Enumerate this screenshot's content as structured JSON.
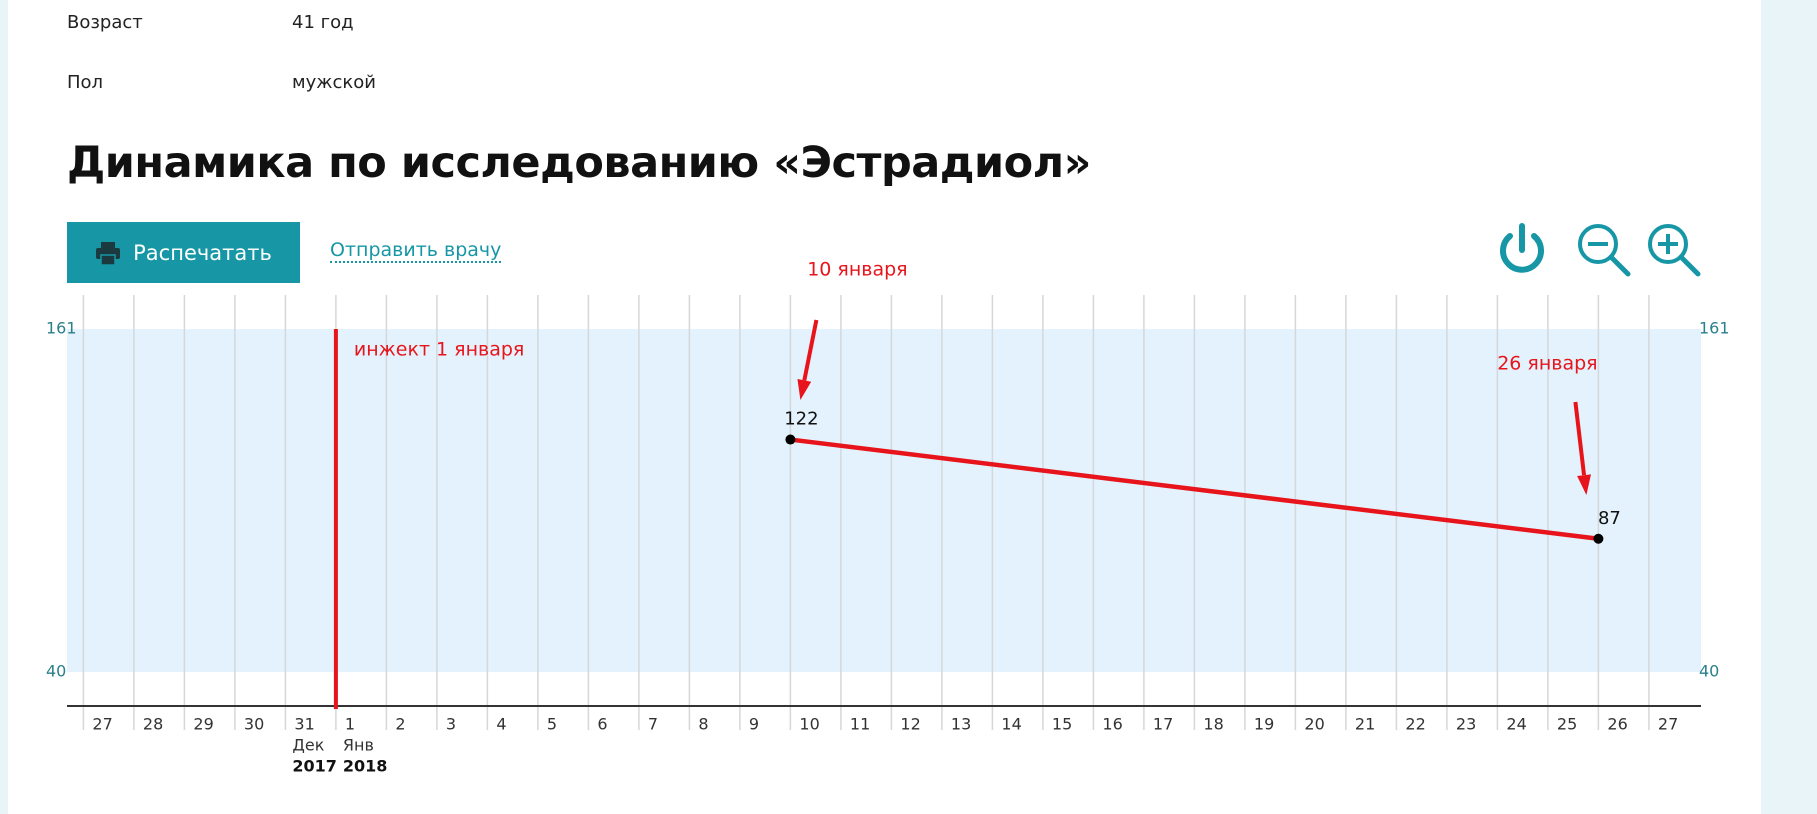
{
  "patient": {
    "rows": [
      {
        "label": "Возраст",
        "value": "41 год"
      },
      {
        "label": "Пол",
        "value": "мужской"
      }
    ]
  },
  "title": "Динамика по исследованию «Эстрадиол»",
  "toolbar": {
    "print_button": "Распечатать",
    "send_link": "Отправить врачу"
  },
  "chart_data": {
    "type": "line",
    "categories": [
      "27",
      "28",
      "29",
      "30",
      "31",
      "1",
      "2",
      "3",
      "4",
      "5",
      "6",
      "7",
      "8",
      "9",
      "10",
      "11",
      "12",
      "13",
      "14",
      "15",
      "16",
      "17",
      "18",
      "19",
      "20",
      "21",
      "22",
      "23",
      "24",
      "25",
      "26",
      "27"
    ],
    "month_labels": [
      {
        "x": "31",
        "month": "Дек",
        "year": "2017"
      },
      {
        "x": "1",
        "month": "Янв",
        "year": "2018"
      }
    ],
    "series": [
      {
        "x": [
          "10",
          "26"
        ],
        "values": [
          122,
          87
        ],
        "color": "#e8141b",
        "marker_color": "#000000"
      }
    ],
    "ylim": [
      28,
      173
    ],
    "yticks": [
      40,
      161
    ],
    "band_color": "#e3f2fc",
    "grid": true,
    "annotations": [
      {
        "text": "инжект 1 января",
        "x": "1",
        "style": "vertical_line"
      },
      {
        "text": "10 января",
        "x": "10",
        "style": "arrow"
      },
      {
        "text": "26 января",
        "x": "26",
        "style": "arrow"
      }
    ]
  }
}
